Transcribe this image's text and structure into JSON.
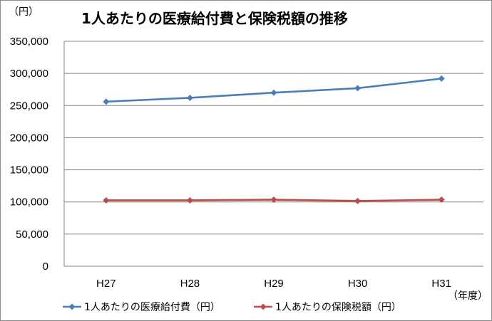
{
  "chart_data": {
    "type": "line",
    "title": "1人あたりの医療給付費と保険税額の推移",
    "y_unit_label": "（円）",
    "x_unit_label": "（年度）",
    "categories": [
      "H27",
      "H28",
      "H29",
      "H30",
      "H31"
    ],
    "ylim": [
      0,
      350000
    ],
    "y_ticks": [
      0,
      50000,
      100000,
      150000,
      200000,
      250000,
      300000,
      350000
    ],
    "y_tick_labels": [
      "0",
      "50,000",
      "100,000",
      "150,000",
      "200,000",
      "250,000",
      "300,000",
      "350,000"
    ],
    "grid": true,
    "legend_position": "bottom",
    "series": [
      {
        "name": "1人あたりの医療給付費（円）",
        "values": [
          256000,
          262000,
          270000,
          277000,
          292000
        ],
        "color": "#4a7ebb",
        "marker": "diamond"
      },
      {
        "name": "1人あたりの保険税額（円）",
        "values": [
          102500,
          102500,
          103500,
          101500,
          103500
        ],
        "color": "#be4b48",
        "marker": "diamond"
      }
    ]
  }
}
